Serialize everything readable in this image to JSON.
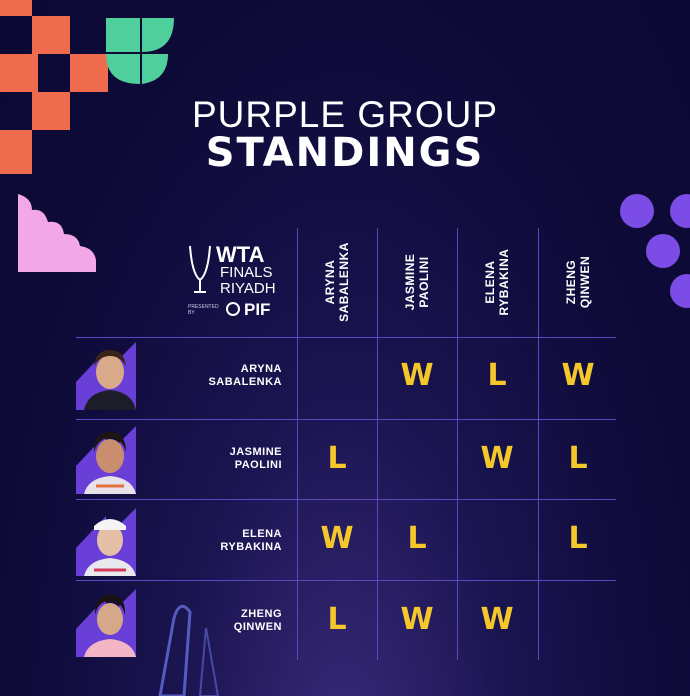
{
  "title": {
    "line1": "PURPLE GROUP",
    "line2": "STANDINGS"
  },
  "logo": {
    "brand": "WTA",
    "line2": "FINALS",
    "line3": "RIYADH",
    "presented": "PRESENTED BY",
    "sponsor": "PIF"
  },
  "players": [
    {
      "first": "ARYNA",
      "last": "SABALENKA",
      "col_label": "ARYNA\nSABALENKA",
      "row_label": "ARYNA\nSABALENKA"
    },
    {
      "first": "JASMINE",
      "last": "PAOLINI",
      "col_label": "JASMINE\nPAOLINI",
      "row_label": "JASMINE\nPAOLINI"
    },
    {
      "first": "ELENA",
      "last": "RYBAKINA",
      "col_label": "ELENA\nRYBAKINA",
      "row_label": "ELENA\nRYBAKINA"
    },
    {
      "first": "ZHENG",
      "last": "QINWEN",
      "col_label": "ZHENG\nQINWEN",
      "row_label": "ZHENG\nQINWEN"
    }
  ],
  "results": [
    [
      "",
      "W",
      "L",
      "W"
    ],
    [
      "L",
      "",
      "W",
      "L"
    ],
    [
      "W",
      "L",
      "",
      "L"
    ],
    [
      "L",
      "W",
      "W",
      ""
    ]
  ],
  "colors": {
    "accent_orange": "#ee6b4d",
    "accent_green": "#4fcf9c",
    "accent_purple": "#7b4de6",
    "accent_pink": "#f2a7e6",
    "result_gold": "#f4c72b",
    "grid_line": "#5a48c0"
  }
}
